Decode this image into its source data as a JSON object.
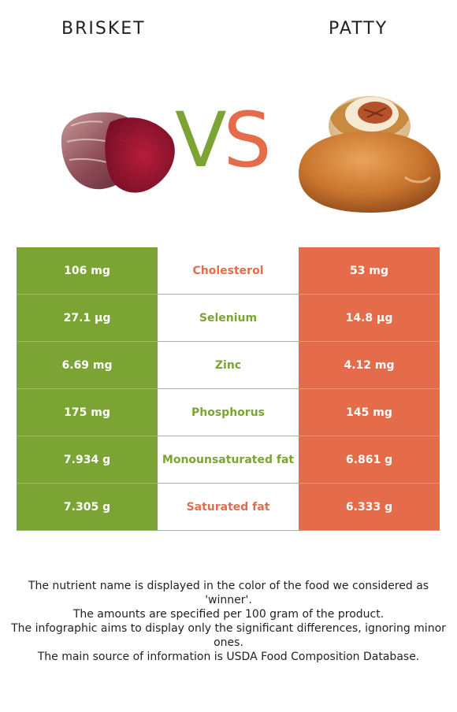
{
  "header": {
    "left_food": "BRISKET",
    "right_food": "PATTY",
    "vs_v": "V",
    "vs_s": "S"
  },
  "colors": {
    "left": "#7ba435",
    "right": "#e46c4a"
  },
  "rows": [
    {
      "left": "106 mg",
      "nutrient": "Cholesterol",
      "right": "53 mg",
      "winner": "right"
    },
    {
      "left": "27.1 µg",
      "nutrient": "Selenium",
      "right": "14.8 µg",
      "winner": "left"
    },
    {
      "left": "6.69 mg",
      "nutrient": "Zinc",
      "right": "4.12 mg",
      "winner": "left"
    },
    {
      "left": "175 mg",
      "nutrient": "Phosphorus",
      "right": "145 mg",
      "winner": "left"
    },
    {
      "left": "7.934 g",
      "nutrient": "Monounsaturated fat",
      "right": "6.861 g",
      "winner": "left"
    },
    {
      "left": "7.305 g",
      "nutrient": "Saturated fat",
      "right": "6.333 g",
      "winner": "right"
    }
  ],
  "notes": [
    "The nutrient name is displayed in the color of the food we considered as 'winner'.",
    "The amounts are specified per 100 gram of the product.",
    "The infographic aims to display only the significant differences, ignoring minor ones.",
    "The main source of information is USDA Food Composition Database."
  ]
}
